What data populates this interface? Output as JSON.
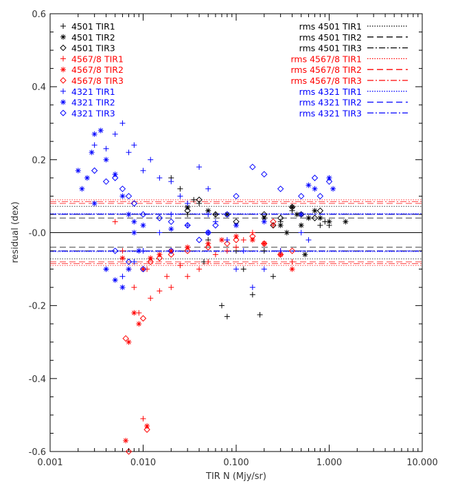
{
  "chart_data": {
    "type": "scatter",
    "title": "",
    "xlabel": "TIR N (Mjy/sr)",
    "ylabel": "residual (dex)",
    "xscale": "log",
    "xlim": [
      0.001,
      10.0
    ],
    "ylim": [
      -0.6,
      0.6
    ],
    "x_tick_labels": [
      "0.001",
      "0.010",
      "0.100",
      "1.000",
      "10.000"
    ],
    "y_tick_labels": [
      "0.6",
      "0.4",
      "0.2",
      "-0.0",
      "-0.2",
      "-0.4",
      "-0.6"
    ],
    "zero_line": 0.0,
    "legend_left_placement": "top-left",
    "legend_right_placement": "top-right",
    "colors": {
      "black": "#000000",
      "red": "#ff0000",
      "blue": "#0000ff"
    },
    "series": [
      {
        "name": "4501 TIR1",
        "color": "black",
        "marker": "plus",
        "points": [
          [
            0.02,
            0.15
          ],
          [
            0.025,
            0.12
          ],
          [
            0.03,
            0.05
          ],
          [
            0.04,
            0.08
          ],
          [
            0.05,
            -0.02
          ],
          [
            0.06,
            0.05
          ],
          [
            0.07,
            -0.2
          ],
          [
            0.08,
            -0.23
          ],
          [
            0.1,
            -0.05
          ],
          [
            0.15,
            -0.17
          ],
          [
            0.18,
            -0.225
          ],
          [
            0.25,
            -0.12
          ],
          [
            0.3,
            0.03
          ],
          [
            0.4,
            0.06
          ],
          [
            0.5,
            0.05
          ],
          [
            0.8,
            0.02
          ],
          [
            0.9,
            0.03
          ],
          [
            1.0,
            0.02
          ],
          [
            0.12,
            -0.1
          ],
          [
            0.2,
            -0.05
          ],
          [
            0.045,
            -0.08
          ],
          [
            0.035,
            0.09
          ]
        ]
      },
      {
        "name": "4501 TIR2",
        "color": "black",
        "marker": "asterisk",
        "points": [
          [
            0.03,
            0.07
          ],
          [
            0.05,
            0.06
          ],
          [
            0.08,
            0.05
          ],
          [
            0.2,
            0.04
          ],
          [
            0.3,
            0.02
          ],
          [
            0.4,
            0.07
          ],
          [
            0.45,
            0.05
          ],
          [
            0.5,
            0.02
          ],
          [
            0.55,
            -0.06
          ],
          [
            0.7,
            0.06
          ],
          [
            0.8,
            0.04
          ],
          [
            1.0,
            0.03
          ],
          [
            1.5,
            0.03
          ],
          [
            0.6,
            0.04
          ],
          [
            0.35,
            0.0
          ]
        ]
      },
      {
        "name": "4501 TIR3",
        "color": "black",
        "marker": "diamond",
        "points": [
          [
            0.03,
            0.06
          ],
          [
            0.04,
            0.09
          ],
          [
            0.06,
            0.05
          ],
          [
            0.1,
            0.03
          ],
          [
            0.2,
            0.05
          ],
          [
            0.3,
            0.04
          ],
          [
            0.4,
            0.07
          ],
          [
            0.5,
            0.05
          ],
          [
            0.7,
            0.04
          ],
          [
            0.8,
            0.06
          ],
          [
            0.25,
            0.02
          ]
        ]
      },
      {
        "name": "4567/8 TIR1",
        "color": "red",
        "marker": "plus",
        "points": [
          [
            0.005,
            0.03
          ],
          [
            0.006,
            -0.05
          ],
          [
            0.007,
            -0.1
          ],
          [
            0.008,
            -0.15
          ],
          [
            0.009,
            -0.22
          ],
          [
            0.01,
            -0.51
          ],
          [
            0.011,
            -0.1
          ],
          [
            0.012,
            -0.18
          ],
          [
            0.015,
            -0.16
          ],
          [
            0.02,
            -0.15
          ],
          [
            0.03,
            -0.12
          ],
          [
            0.04,
            -0.1
          ],
          [
            0.05,
            -0.08
          ],
          [
            0.06,
            -0.06
          ],
          [
            0.08,
            -0.05
          ],
          [
            0.1,
            -0.04
          ],
          [
            0.12,
            -0.02
          ],
          [
            0.15,
            0.0
          ],
          [
            0.2,
            -0.03
          ],
          [
            0.3,
            -0.05
          ],
          [
            0.4,
            -0.08
          ],
          [
            0.25,
            0.02
          ],
          [
            0.018,
            -0.12
          ],
          [
            0.025,
            -0.09
          ]
        ]
      },
      {
        "name": "4567/8 TIR2",
        "color": "red",
        "marker": "asterisk",
        "points": [
          [
            0.006,
            -0.07
          ],
          [
            0.007,
            -0.3
          ],
          [
            0.008,
            -0.22
          ],
          [
            0.009,
            -0.25
          ],
          [
            0.01,
            -0.1
          ],
          [
            0.011,
            -0.53
          ],
          [
            0.012,
            -0.07
          ],
          [
            0.015,
            -0.06
          ],
          [
            0.02,
            -0.05
          ],
          [
            0.03,
            -0.04
          ],
          [
            0.05,
            -0.03
          ],
          [
            0.07,
            -0.02
          ],
          [
            0.1,
            -0.01
          ],
          [
            0.15,
            -0.02
          ],
          [
            0.2,
            -0.03
          ],
          [
            0.3,
            -0.06
          ],
          [
            0.4,
            -0.1
          ],
          [
            0.0065,
            -0.57
          ]
        ]
      },
      {
        "name": "4567/8 TIR3",
        "color": "red",
        "marker": "diamond",
        "points": [
          [
            0.0065,
            -0.29
          ],
          [
            0.007,
            -0.6
          ],
          [
            0.01,
            -0.235
          ],
          [
            0.011,
            -0.54
          ],
          [
            0.012,
            -0.08
          ],
          [
            0.015,
            -0.07
          ],
          [
            0.02,
            -0.06
          ],
          [
            0.03,
            -0.05
          ],
          [
            0.05,
            -0.04
          ],
          [
            0.08,
            -0.03
          ],
          [
            0.1,
            -0.02
          ],
          [
            0.15,
            -0.01
          ],
          [
            0.2,
            -0.03
          ],
          [
            0.3,
            -0.06
          ],
          [
            0.4,
            -0.05
          ],
          [
            0.25,
            0.03
          ]
        ]
      },
      {
        "name": "4321 TIR1",
        "color": "blue",
        "marker": "plus",
        "points": [
          [
            0.003,
            0.24
          ],
          [
            0.004,
            0.23
          ],
          [
            0.005,
            0.27
          ],
          [
            0.006,
            0.3
          ],
          [
            0.007,
            0.22
          ],
          [
            0.008,
            0.24
          ],
          [
            0.01,
            0.17
          ],
          [
            0.012,
            0.2
          ],
          [
            0.015,
            0.15
          ],
          [
            0.02,
            0.14
          ],
          [
            0.025,
            0.1
          ],
          [
            0.03,
            0.08
          ],
          [
            0.04,
            0.18
          ],
          [
            0.05,
            0.05
          ],
          [
            0.06,
            0.03
          ],
          [
            0.08,
            -0.02
          ],
          [
            0.1,
            -0.1
          ],
          [
            0.12,
            -0.05
          ],
          [
            0.15,
            -0.15
          ],
          [
            0.2,
            -0.1
          ],
          [
            0.3,
            -0.05
          ],
          [
            0.5,
            0.0
          ],
          [
            0.6,
            -0.02
          ],
          [
            0.004,
            -0.1
          ],
          [
            0.006,
            -0.12
          ],
          [
            0.008,
            -0.08
          ],
          [
            0.01,
            -0.05
          ],
          [
            0.015,
            0.0
          ],
          [
            0.02,
            0.05
          ],
          [
            0.03,
            0.02
          ],
          [
            0.05,
            0.12
          ]
        ]
      },
      {
        "name": "4321 TIR2",
        "color": "blue",
        "marker": "asterisk",
        "points": [
          [
            0.002,
            0.17
          ],
          [
            0.0025,
            0.15
          ],
          [
            0.003,
            0.27
          ],
          [
            0.0035,
            0.28
          ],
          [
            0.004,
            0.2
          ],
          [
            0.005,
            0.16
          ],
          [
            0.006,
            0.1
          ],
          [
            0.007,
            0.05
          ],
          [
            0.008,
            0.0
          ],
          [
            0.009,
            -0.05
          ],
          [
            0.005,
            -0.13
          ],
          [
            0.004,
            -0.1
          ],
          [
            0.003,
            0.08
          ],
          [
            0.006,
            -0.15
          ],
          [
            0.007,
            -0.1
          ],
          [
            0.008,
            0.03
          ],
          [
            0.01,
            0.02
          ],
          [
            0.02,
            0.01
          ],
          [
            0.05,
            0.0
          ],
          [
            0.1,
            0.02
          ],
          [
            0.2,
            0.03
          ],
          [
            0.5,
            0.05
          ],
          [
            0.6,
            0.13
          ],
          [
            0.7,
            0.12
          ],
          [
            1.0,
            0.15
          ],
          [
            1.1,
            0.12
          ],
          [
            0.0022,
            0.12
          ],
          [
            0.0028,
            0.22
          ]
        ]
      },
      {
        "name": "4321 TIR3",
        "color": "blue",
        "marker": "diamond",
        "points": [
          [
            0.003,
            0.17
          ],
          [
            0.004,
            0.14
          ],
          [
            0.005,
            0.15
          ],
          [
            0.006,
            0.12
          ],
          [
            0.007,
            0.1
          ],
          [
            0.008,
            0.08
          ],
          [
            0.01,
            0.05
          ],
          [
            0.015,
            0.04
          ],
          [
            0.02,
            0.03
          ],
          [
            0.03,
            0.02
          ],
          [
            0.05,
            0.0
          ],
          [
            0.08,
            0.05
          ],
          [
            0.1,
            0.1
          ],
          [
            0.15,
            0.18
          ],
          [
            0.2,
            0.16
          ],
          [
            0.3,
            0.12
          ],
          [
            0.5,
            0.1
          ],
          [
            0.7,
            0.15
          ],
          [
            1.0,
            0.14
          ],
          [
            0.8,
            0.1
          ],
          [
            0.005,
            -0.05
          ],
          [
            0.007,
            -0.08
          ],
          [
            0.01,
            -0.1
          ],
          [
            0.02,
            -0.05
          ],
          [
            0.04,
            -0.02
          ],
          [
            0.06,
            0.02
          ]
        ]
      }
    ],
    "rms_lines": [
      {
        "name": "rms 4501 TIR1",
        "color": "black",
        "dash": "dotted",
        "value": 0.072
      },
      {
        "name": "rms 4501 TIR2",
        "color": "black",
        "dash": "dashed",
        "value": 0.04
      },
      {
        "name": "rms 4501 TIR3",
        "color": "black",
        "dash": "dashdot",
        "value": 0.05
      },
      {
        "name": "rms 4567/8 TIR1",
        "color": "red",
        "dash": "dotted",
        "value": 0.09
      },
      {
        "name": "rms 4567/8 TIR2",
        "color": "red",
        "dash": "dashed",
        "value": 0.08
      },
      {
        "name": "rms 4567/8 TIR3",
        "color": "red",
        "dash": "dashdot",
        "value": 0.085
      },
      {
        "name": "rms 4321 TIR1",
        "color": "blue",
        "dash": "dotted",
        "value": 0.052
      },
      {
        "name": "rms 4321 TIR2",
        "color": "blue",
        "dash": "dashed",
        "value": 0.05
      },
      {
        "name": "rms 4321 TIR3",
        "color": "blue",
        "dash": "dashdot",
        "value": 0.051
      }
    ]
  }
}
